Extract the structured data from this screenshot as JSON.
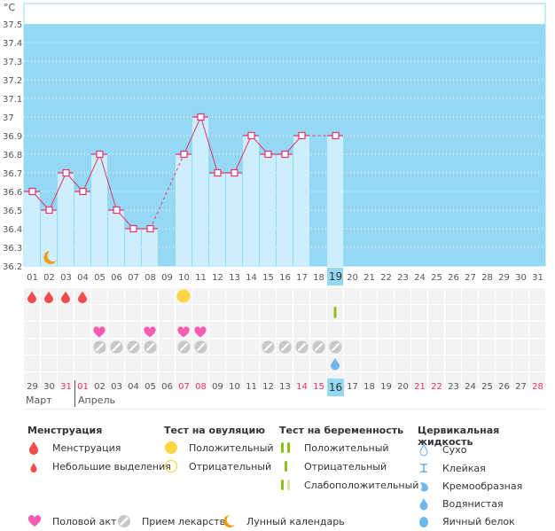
{
  "chart_data": {
    "type": "bar",
    "title": "",
    "unit_label": "°C",
    "ylim": [
      36.2,
      37.6
    ],
    "y_ticks": [
      "36.2",
      "36.3",
      "36.4",
      "36.5",
      "36.6",
      "36.7",
      "36.8",
      "36.9",
      "37",
      "37.1",
      "37.2",
      "37.3",
      "37.4",
      "37.5"
    ],
    "y_tick_values": [
      36.2,
      36.3,
      36.4,
      36.5,
      36.6,
      36.7,
      36.8,
      36.9,
      37.0,
      37.1,
      37.2,
      37.3,
      37.4,
      37.5
    ],
    "categories": [
      "01",
      "02",
      "03",
      "04",
      "05",
      "06",
      "07",
      "08",
      "09",
      "10",
      "11",
      "12",
      "13",
      "14",
      "15",
      "16",
      "17",
      "18",
      "19",
      "20",
      "21",
      "22",
      "23",
      "24",
      "25",
      "26",
      "27",
      "28",
      "29",
      "30",
      "31"
    ],
    "values": [
      36.6,
      36.5,
      36.7,
      36.6,
      36.8,
      36.5,
      36.4,
      36.4,
      null,
      36.8,
      37.0,
      36.7,
      36.7,
      36.9,
      36.8,
      36.8,
      36.9,
      null,
      36.9,
      null,
      null,
      null,
      null,
      null,
      null,
      null,
      null,
      null,
      null,
      null,
      null
    ],
    "selected_day": "19",
    "grid": true,
    "series_colors": {
      "bar": "#cdeefc",
      "background": "#94d8f3",
      "line": "#e8336a"
    },
    "moon_day": "02"
  },
  "calendar": {
    "dates": [
      "29",
      "30",
      "31",
      "01",
      "02",
      "03",
      "04",
      "05",
      "06",
      "07",
      "08",
      "09",
      "10",
      "11",
      "12",
      "13",
      "14",
      "15",
      "16",
      "17",
      "18",
      "19",
      "20",
      "21",
      "22",
      "23",
      "24",
      "25",
      "26",
      "27",
      "28"
    ],
    "weekend_dates": [
      "31",
      "01",
      "07",
      "08",
      "14",
      "15",
      "21",
      "22",
      "28"
    ],
    "selected_date": "16",
    "months": {
      "march": "Март",
      "april": "Апрель"
    },
    "menstruation_days": [
      0,
      1,
      2,
      3
    ],
    "ovulation_positive_days": [
      9
    ],
    "pregnancy_negative_days": [
      18
    ],
    "intercourse_days": [
      4,
      7,
      9,
      10
    ],
    "medication_days": [
      4,
      5,
      6,
      7,
      9,
      10,
      14,
      15,
      16,
      17,
      18
    ],
    "cervical_watery_days": [
      18
    ]
  },
  "legend": {
    "menstruation": {
      "title": "Менструация",
      "items": [
        "Менструация",
        "Небольшие выделения"
      ]
    },
    "ovulation": {
      "title": "Тест на овуляцию",
      "items": [
        "Положительный",
        "Отрицательный"
      ]
    },
    "pregnancy": {
      "title": "Тест на беременность",
      "items": [
        "Положительный",
        "Отрицательный",
        "Слабоположительный"
      ]
    },
    "cervical": {
      "title": "Цервикальная жидкость",
      "items": [
        "Сухо",
        "Клейкая",
        "Кремообразная",
        "Водянистая",
        "Яичный белок"
      ]
    },
    "other": [
      "Половой акт",
      "Прием лекарств",
      "Лунный календарь"
    ]
  },
  "colors": {
    "menstruation": "#f24b4b",
    "ovulation": "#fcd444",
    "pregnancy": "#8fbf1a",
    "pregnancy_weak": "#d5e8a8",
    "heart": "#f65cb1",
    "pill": "#c8c8c8",
    "moon": "#f39c12",
    "cervical": "#6db7ee"
  }
}
